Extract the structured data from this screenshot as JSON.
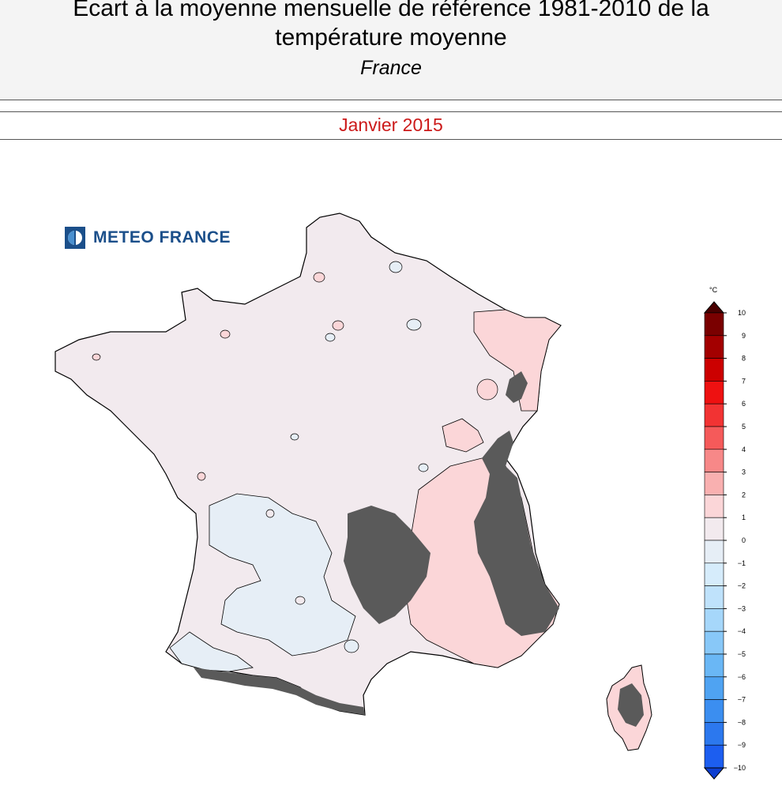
{
  "header": {
    "title_line1": "Ecart à la moyenne mensuelle de référence 1981-2010 de la",
    "title_line2": "température moyenne",
    "region": "France"
  },
  "period": "Janvier 2015",
  "logo": {
    "text": "METEO FRANCE"
  },
  "legend": {
    "unit": "°C",
    "ticks": [
      "10",
      "9",
      "8",
      "7",
      "6",
      "5",
      "4",
      "3",
      "2",
      "1",
      "0",
      "−1",
      "−2",
      "−3",
      "−4",
      "−5",
      "−6",
      "−7",
      "−8",
      "−9",
      "−10"
    ],
    "colors": [
      "#7a0000",
      "#a30000",
      "#cc0000",
      "#ee1111",
      "#f23333",
      "#f55a5a",
      "#f78888",
      "#f9b0b0",
      "#fbd6d8",
      "#f2eaee",
      "#e6eef6",
      "#d6ecfb",
      "#bfe2fb",
      "#a6d7fa",
      "#88c8f8",
      "#6ab7f5",
      "#4fa3f2",
      "#3b8ef0",
      "#2c78ee",
      "#1c5ef0"
    ]
  },
  "map_colors": {
    "near_zero_warm": "#f2eaee",
    "slight_cold": "#e6eef6",
    "warm": "#fbd6d8",
    "mountain_mask": "#5a5a5a",
    "coastline": "#000000"
  }
}
